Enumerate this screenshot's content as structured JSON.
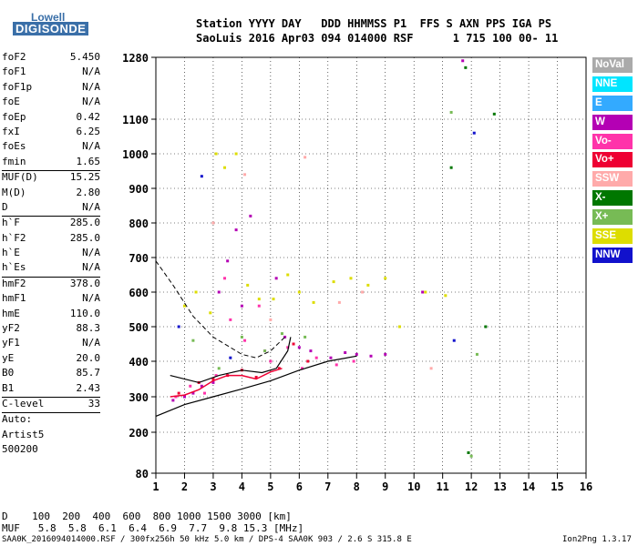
{
  "logo": {
    "line1": "Lowell",
    "line2": "DIGISONDE"
  },
  "header": {
    "line1": "Station YYYY DAY   DDD HHMMSS P1  FFS S AXN PPS IGA PS",
    "line2": "SaoLuis 2016 Apr03 094 014000 RSF      1 715 100 00- 11"
  },
  "parameters": [
    {
      "name": "foF2",
      "value": "5.450"
    },
    {
      "name": "foF1",
      "value": "N/A"
    },
    {
      "name": "foF1p",
      "value": "N/A"
    },
    {
      "name": "foE",
      "value": "N/A"
    },
    {
      "name": "foEp",
      "value": "0.42"
    },
    {
      "name": "fxI",
      "value": "6.25"
    },
    {
      "name": "foEs",
      "value": "N/A"
    },
    {
      "name": "fmin",
      "value": "1.65"
    },
    {
      "sep": true
    },
    {
      "name": "MUF(D)",
      "value": "15.25"
    },
    {
      "name": "M(D)",
      "value": "2.80"
    },
    {
      "name": "D",
      "value": "N/A"
    },
    {
      "sep": true
    },
    {
      "name": "h`F",
      "value": "285.0"
    },
    {
      "name": "h`F2",
      "value": "285.0"
    },
    {
      "name": "h`E",
      "value": "N/A"
    },
    {
      "name": "h`Es",
      "value": "N/A"
    },
    {
      "sep": true
    },
    {
      "name": "hmF2",
      "value": "378.0"
    },
    {
      "name": "hmF1",
      "value": "N/A"
    },
    {
      "name": "hmE",
      "value": "110.0"
    },
    {
      "name": "yF2",
      "value": "88.3"
    },
    {
      "name": "yF1",
      "value": "N/A"
    },
    {
      "name": "yE",
      "value": "20.0"
    },
    {
      "name": "B0",
      "value": "85.7"
    },
    {
      "name": "B1",
      "value": "2.43"
    },
    {
      "sep": true
    },
    {
      "name": "C-level",
      "value": "33"
    },
    {
      "sep": true
    },
    {
      "name": "Auto:",
      "value": ""
    },
    {
      "name": "Artist5",
      "value": ""
    },
    {
      "name": "500200",
      "value": ""
    }
  ],
  "legend": [
    {
      "label": "NoVal",
      "color": "#aaaaaa"
    },
    {
      "label": "NNE",
      "color": "#00e5ff"
    },
    {
      "label": "E",
      "color": "#33aaff"
    },
    {
      "label": "W",
      "color": "#b400b4"
    },
    {
      "label": "Vo-",
      "color": "#ff33aa"
    },
    {
      "label": "Vo+",
      "color": "#ee0033"
    },
    {
      "label": "SSW",
      "color": "#ffaaaa"
    },
    {
      "label": "X-",
      "color": "#007700"
    },
    {
      "label": "X+",
      "color": "#77bb55"
    },
    {
      "label": "SSE",
      "color": "#dddd00"
    },
    {
      "label": "NNW",
      "color": "#1111cc"
    }
  ],
  "chart_data": {
    "type": "scatter",
    "x_ticks": [
      "1",
      "2",
      "3",
      "4",
      "5",
      "6",
      "7",
      "8",
      "9",
      "10",
      "11",
      "12",
      "13",
      "14",
      "15",
      "16"
    ],
    "y_ticks": [
      "80",
      "200",
      "300",
      "400",
      "500",
      "600",
      "700",
      "800",
      "900",
      "1000",
      "1100",
      "1280"
    ],
    "xlim": [
      1,
      16
    ],
    "grid": true,
    "series": [
      {
        "name": "W",
        "color": "#b400b4",
        "points": [
          [
            1.6,
            290
          ],
          [
            2.0,
            300
          ],
          [
            2.3,
            310
          ],
          [
            2.6,
            330
          ],
          [
            3.0,
            340
          ],
          [
            3.2,
            600
          ],
          [
            3.5,
            690
          ],
          [
            3.8,
            780
          ],
          [
            4.0,
            560
          ],
          [
            4.3,
            820
          ],
          [
            4.8,
            430
          ],
          [
            5.2,
            640
          ],
          [
            5.5,
            470
          ],
          [
            6.0,
            440
          ],
          [
            6.4,
            430
          ],
          [
            7.1,
            410
          ],
          [
            7.6,
            425
          ],
          [
            8.0,
            420
          ],
          [
            8.5,
            415
          ],
          [
            9.0,
            420
          ],
          [
            10.3,
            600
          ],
          [
            11.7,
            1270
          ]
        ]
      },
      {
        "name": "Vo-",
        "color": "#ff33aa",
        "points": [
          [
            1.7,
            300
          ],
          [
            2.2,
            330
          ],
          [
            2.7,
            310
          ],
          [
            3.1,
            360
          ],
          [
            3.4,
            640
          ],
          [
            3.6,
            520
          ],
          [
            4.1,
            460
          ],
          [
            4.6,
            560
          ],
          [
            5.0,
            400
          ],
          [
            5.6,
            440
          ],
          [
            6.1,
            380
          ],
          [
            6.6,
            410
          ],
          [
            7.3,
            390
          ],
          [
            7.9,
            400
          ]
        ]
      },
      {
        "name": "Vo+",
        "color": "#ee0033",
        "points": [
          [
            1.8,
            310
          ],
          [
            2.5,
            340
          ],
          [
            3.0,
            350
          ],
          [
            3.5,
            360
          ],
          [
            4.0,
            375
          ],
          [
            4.5,
            355
          ],
          [
            5.3,
            380
          ],
          [
            5.8,
            450
          ],
          [
            6.3,
            400
          ]
        ]
      },
      {
        "name": "SSE",
        "color": "#dddd00",
        "points": [
          [
            2.0,
            560
          ],
          [
            2.4,
            600
          ],
          [
            2.9,
            540
          ],
          [
            3.1,
            1000
          ],
          [
            3.4,
            960
          ],
          [
            3.8,
            1000
          ],
          [
            4.2,
            620
          ],
          [
            4.6,
            580
          ],
          [
            5.1,
            580
          ],
          [
            5.6,
            650
          ],
          [
            6.0,
            600
          ],
          [
            6.5,
            570
          ],
          [
            7.2,
            630
          ],
          [
            7.8,
            640
          ],
          [
            8.4,
            620
          ],
          [
            9.0,
            640
          ],
          [
            9.5,
            500
          ],
          [
            10.4,
            600
          ],
          [
            11.1,
            590
          ]
        ]
      },
      {
        "name": "X+",
        "color": "#77bb55",
        "points": [
          [
            2.3,
            460
          ],
          [
            3.2,
            380
          ],
          [
            4.0,
            470
          ],
          [
            4.8,
            430
          ],
          [
            5.4,
            480
          ],
          [
            6.2,
            470
          ],
          [
            11.3,
            1120
          ],
          [
            12.2,
            420
          ],
          [
            12.0,
            130
          ]
        ]
      },
      {
        "name": "X-",
        "color": "#007700",
        "points": [
          [
            11.3,
            960
          ],
          [
            11.8,
            1250
          ],
          [
            12.5,
            500
          ],
          [
            12.8,
            1115
          ],
          [
            11.9,
            140
          ]
        ]
      },
      {
        "name": "SSW",
        "color": "#ffaaaa",
        "points": [
          [
            3.0,
            800
          ],
          [
            4.1,
            940
          ],
          [
            5.0,
            520
          ],
          [
            6.2,
            990
          ],
          [
            7.4,
            570
          ],
          [
            8.2,
            600
          ],
          [
            10.6,
            380
          ]
        ]
      },
      {
        "name": "NNW",
        "color": "#1111cc",
        "points": [
          [
            1.8,
            500
          ],
          [
            2.6,
            935
          ],
          [
            3.6,
            410
          ],
          [
            11.4,
            460
          ],
          [
            12.1,
            1060
          ]
        ]
      }
    ],
    "curves": {
      "profile_solid": [
        [
          1.0,
          245
        ],
        [
          2.0,
          278
        ],
        [
          3.0,
          300
        ],
        [
          4.0,
          322
        ],
        [
          5.0,
          345
        ],
        [
          6.0,
          375
        ],
        [
          7.0,
          400
        ],
        [
          8.0,
          415
        ]
      ],
      "trace_solid": [
        [
          1.5,
          360
        ],
        [
          2.5,
          340
        ],
        [
          3.2,
          360
        ],
        [
          4.0,
          375
        ],
        [
          4.7,
          368
        ],
        [
          5.2,
          380
        ],
        [
          5.6,
          430
        ],
        [
          5.7,
          470
        ]
      ],
      "trace_dashed": [
        [
          1.0,
          690
        ],
        [
          1.6,
          620
        ],
        [
          2.3,
          530
        ],
        [
          3.0,
          470
        ],
        [
          4.0,
          420
        ],
        [
          4.5,
          410
        ],
        [
          5.0,
          430
        ],
        [
          5.5,
          470
        ]
      ],
      "red_trace": [
        [
          1.5,
          300
        ],
        [
          2.0,
          305
        ],
        [
          2.5,
          320
        ],
        [
          3.0,
          345
        ],
        [
          3.5,
          360
        ],
        [
          4.0,
          360
        ],
        [
          4.5,
          350
        ],
        [
          5.0,
          370
        ],
        [
          5.4,
          380
        ]
      ]
    }
  },
  "bottom_table": {
    "d_row": "D    100  200  400  600  800 1000 1500 3000 [km]",
    "muf_row": "MUF   5.8  5.8  6.1  6.4  6.9  7.7  9.8 15.3 [MHz]"
  },
  "footer": {
    "left": "SAA0K_2016094014000.RSF / 300fx256h 50 kHz 5.0 km / DPS-4 SAA0K 903 / 2.6 S 315.8 E",
    "right": "Ion2Png 1.3.17"
  }
}
